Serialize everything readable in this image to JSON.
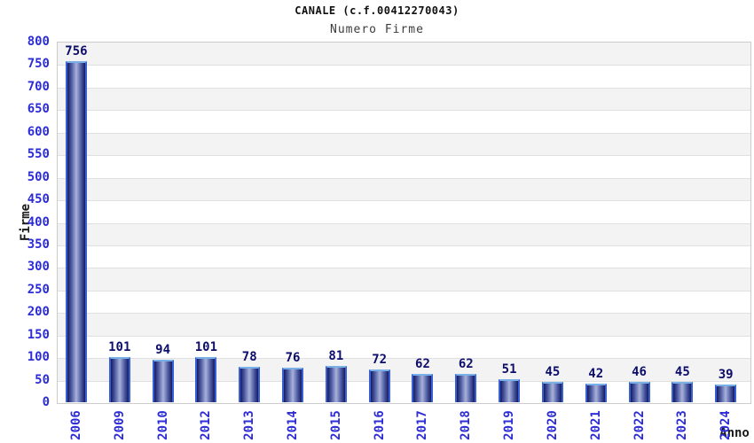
{
  "header": {
    "title": "CANALE (c.f.00412270043)",
    "subtitle": "Numero Firme"
  },
  "chart_data": {
    "type": "bar",
    "title": "CANALE (c.f.00412270043)",
    "subtitle": "Numero Firme",
    "xlabel": "Anno",
    "ylabel": "Firme",
    "categories": [
      "2006",
      "2009",
      "2010",
      "2012",
      "2013",
      "2014",
      "2015",
      "2016",
      "2017",
      "2018",
      "2019",
      "2020",
      "2021",
      "2022",
      "2023",
      "2024"
    ],
    "values": [
      756,
      101,
      94,
      101,
      78,
      76,
      81,
      72,
      62,
      62,
      51,
      45,
      42,
      46,
      45,
      39
    ],
    "ylim": [
      0,
      800
    ],
    "ytick_step": 50,
    "grid": "horizontal gridlines every 50 with alternating gray/white bands",
    "legend_position": "none",
    "colors": {
      "bar_gradient_dark": "#151b60",
      "bar_gradient_mid": "#4a58a0",
      "bar_gradient_light": "#a9b2da",
      "bar_side_border": "#3a5fd0",
      "bar_top_border": "#7ab0e8",
      "value_label": "#0d0d6b",
      "tick_label": "#2d2dd6",
      "band_gray": "#f3f3f3",
      "band_white": "#ffffff",
      "gridline": "#e0e0e0",
      "plot_border": "#cccccc",
      "title_color": "#111111",
      "subtitle_color": "#3c3c3c",
      "axis_title_color": "#1a1a1a"
    }
  }
}
